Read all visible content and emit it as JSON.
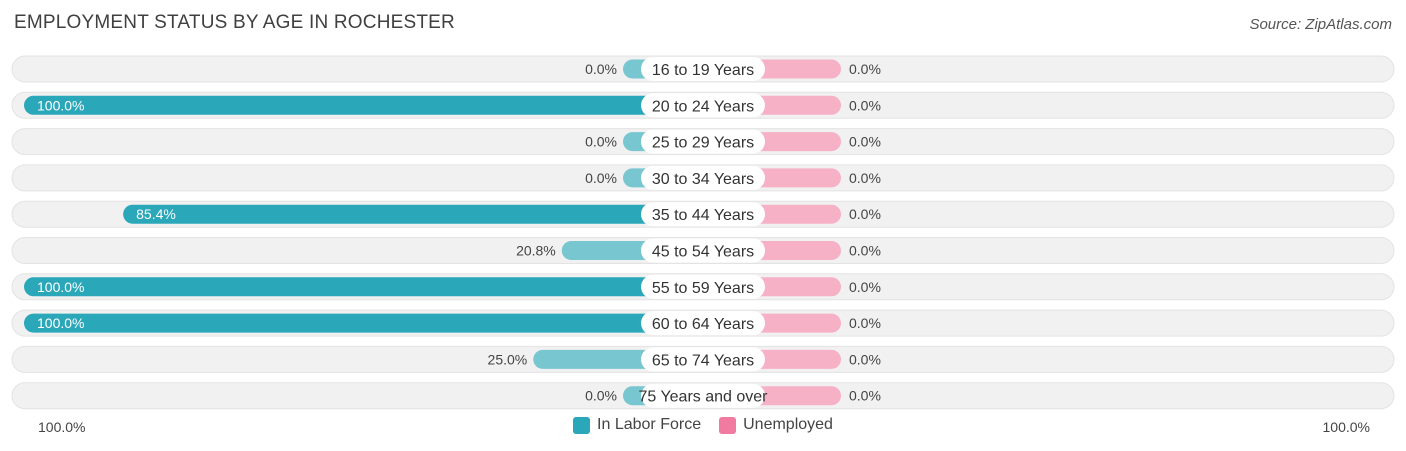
{
  "title": "EMPLOYMENT STATUS BY AGE IN ROCHESTER",
  "source": "Source: ZipAtlas.com",
  "colors": {
    "labor_force": "#2aa7b9",
    "labor_force_light": "#77c6d0",
    "unemployed": "#f17aa0",
    "unemployed_light": "#f6b1c7",
    "track": "#f1f1f1"
  },
  "axis": {
    "left_label": "100.0%",
    "right_label": "100.0%"
  },
  "chart_data": {
    "type": "bar",
    "orientation": "diverging-horizontal",
    "categories": [
      "16 to 19 Years",
      "20 to 24 Years",
      "25 to 29 Years",
      "30 to 34 Years",
      "35 to 44 Years",
      "45 to 54 Years",
      "55 to 59 Years",
      "60 to 64 Years",
      "65 to 74 Years",
      "75 Years and over"
    ],
    "series": [
      {
        "name": "In Labor Force",
        "values": [
          0.0,
          100.0,
          0.0,
          0.0,
          85.4,
          20.8,
          100.0,
          100.0,
          25.0,
          0.0
        ],
        "labels": [
          "0.0%",
          "100.0%",
          "0.0%",
          "0.0%",
          "85.4%",
          "20.8%",
          "100.0%",
          "100.0%",
          "25.0%",
          "0.0%"
        ]
      },
      {
        "name": "Unemployed",
        "values": [
          0.0,
          0.0,
          0.0,
          0.0,
          0.0,
          0.0,
          0.0,
          0.0,
          0.0,
          0.0
        ],
        "labels": [
          "0.0%",
          "0.0%",
          "0.0%",
          "0.0%",
          "0.0%",
          "0.0%",
          "0.0%",
          "0.0%",
          "0.0%",
          "0.0%"
        ]
      }
    ],
    "xlim": [
      -100,
      100
    ],
    "legend": "bottom-center"
  }
}
